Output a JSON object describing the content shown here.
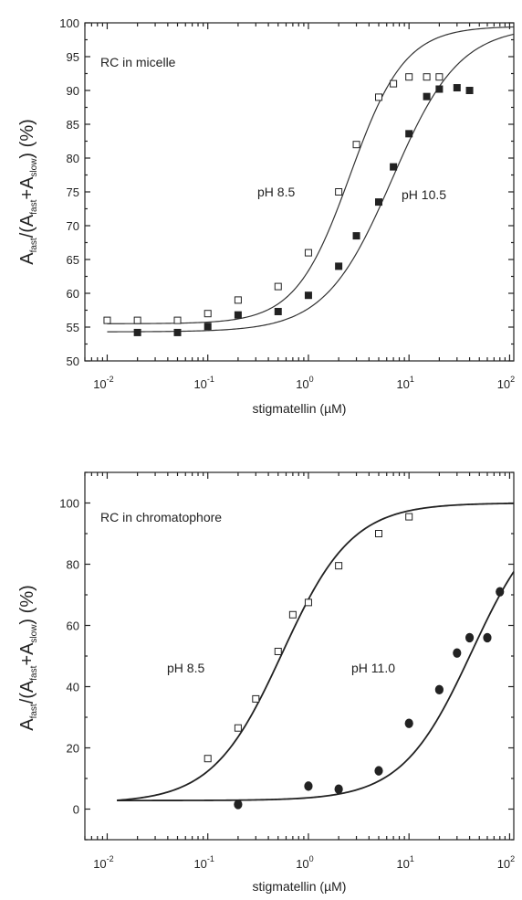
{
  "chart_data": [
    {
      "type": "scatter",
      "annotation": "RC in micelle",
      "xlabel": "stigmatellin (µM)",
      "ylabel_main": "A",
      "ylabel_sub1": "fast",
      "ylabel_mid": "/(A",
      "ylabel_sub2": "fast",
      "ylabel_mid2": "+A",
      "ylabel_sub3": "slow",
      "ylabel_end": ") (%)",
      "xscale": "log",
      "xlim": [
        0.006,
        110
      ],
      "ylim": [
        50,
        100
      ],
      "yticks": [
        50,
        55,
        60,
        65,
        70,
        75,
        80,
        85,
        90,
        95,
        100
      ],
      "xtick_base": "10",
      "xtick_exps": [
        "-2",
        "-1",
        "0",
        "1",
        "2"
      ],
      "series": [
        {
          "label": "pH 8.5",
          "marker": "open-square",
          "points": [
            [
              0.01,
              56
            ],
            [
              0.02,
              56
            ],
            [
              0.05,
              56
            ],
            [
              0.1,
              57
            ],
            [
              0.2,
              59
            ],
            [
              0.5,
              61
            ],
            [
              1,
              66
            ],
            [
              2,
              75
            ],
            [
              3,
              82
            ],
            [
              5,
              89
            ],
            [
              7,
              91
            ],
            [
              10,
              92
            ],
            [
              15,
              92
            ],
            [
              20,
              92
            ]
          ],
          "fit": {
            "bottom": 55.5,
            "top": 99.5,
            "ec50": 2.6,
            "hill": 1.6
          }
        },
        {
          "label": "pH 10.5",
          "marker": "filled-square",
          "points": [
            [
              0.02,
              54.2
            ],
            [
              0.05,
              54.2
            ],
            [
              0.1,
              55.1
            ],
            [
              0.2,
              56.8
            ],
            [
              0.5,
              57.3
            ],
            [
              1,
              59.7
            ],
            [
              2,
              64
            ],
            [
              3,
              68.5
            ],
            [
              5,
              73.5
            ],
            [
              7,
              78.7
            ],
            [
              10,
              83.6
            ],
            [
              15,
              89.1
            ],
            [
              20,
              90.2
            ],
            [
              30,
              90.4
            ],
            [
              40,
              90
            ]
          ],
          "fit": {
            "bottom": 54.3,
            "top": 99.5,
            "ec50": 6.8,
            "hill": 1.3
          }
        }
      ]
    },
    {
      "type": "scatter",
      "annotation": "RC in chromatophore",
      "xlabel": "stigmatellin (µM)",
      "ylabel_main": "A",
      "ylabel_sub1": "fast",
      "ylabel_mid": "/(A",
      "ylabel_sub2": "fast",
      "ylabel_mid2": "+A",
      "ylabel_sub3": "slow",
      "ylabel_end": ") (%)",
      "xscale": "log",
      "xlim": [
        0.006,
        110
      ],
      "ylim": [
        -10,
        110
      ],
      "yticks": [
        0,
        20,
        40,
        60,
        80,
        100
      ],
      "xtick_base": "10",
      "xtick_exps": [
        "-2",
        "-1",
        "0",
        "1",
        "2"
      ],
      "series": [
        {
          "label": "pH 8.5",
          "marker": "open-square",
          "points": [
            [
              0.1,
              16.5
            ],
            [
              0.2,
              26.5
            ],
            [
              0.3,
              36
            ],
            [
              0.5,
              51.5
            ],
            [
              0.7,
              63.5
            ],
            [
              1,
              67.5
            ],
            [
              2,
              79.5
            ],
            [
              5,
              90
            ],
            [
              10,
              95.5
            ]
          ],
          "fit": {
            "bottom": 2.0,
            "top": 100,
            "ec50": 0.55,
            "hill": 1.25
          }
        },
        {
          "label": "pH 11.0",
          "marker": "filled-circle",
          "points": [
            [
              0.2,
              1.5
            ],
            [
              1,
              7.5
            ],
            [
              2,
              6.5
            ],
            [
              5,
              12.5
            ],
            [
              10,
              28
            ],
            [
              20,
              39
            ],
            [
              30,
              51
            ],
            [
              40,
              56
            ],
            [
              60,
              56
            ],
            [
              80,
              71
            ]
          ],
          "fit": {
            "bottom": 2.8,
            "top": 100,
            "ec50": 42,
            "hill": 1.25
          }
        }
      ]
    }
  ]
}
